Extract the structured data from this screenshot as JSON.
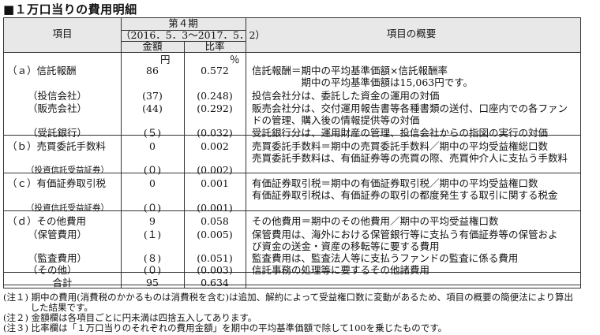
{
  "title": "■１万口当りの費用明細",
  "header": {
    "item": "項目",
    "period": "第４期",
    "date_range": "（2016．5．3～2017．5．2）",
    "amount": "金額",
    "ratio": "比率",
    "overview": "項目の概要"
  },
  "units": {
    "amount": "円",
    "ratio": "％"
  },
  "rows": [
    {
      "label": "（ａ）信託報酬",
      "amount": "86",
      "ratio": "0.572",
      "desc": [
        "信託報酬＝期中の平均基準価額×信託報酬率",
        "　　　　　期中の平均基準価額は15,063円です。"
      ]
    },
    {
      "label": "（投信会社）",
      "amount": "(37)",
      "ratio": "(0.248)",
      "desc": [
        "投信会社分は、委託した資金の運用の対価"
      ],
      "sub": true
    },
    {
      "label": "（販売会社）",
      "amount": "(44)",
      "ratio": "(0.292)",
      "desc": [
        "販売会社分は、交付運用報告書等各種書類の送付、口座内での各ファン",
        "ドの管理、購入後の情報提供等の対価"
      ],
      "sub": true
    },
    {
      "label": "（受託銀行）",
      "amount": "(５)",
      "ratio": "(0.032)",
      "desc": [
        "受託銀行分は、運用財産の管理、投信会社からの指図の実行の対価"
      ],
      "sub": true
    },
    {
      "label": "（ｂ）売買委託手数料",
      "amount": "0",
      "ratio": "0.002",
      "desc": [
        "売買委託手数料＝期中の売買委託手数料／期中の平均受益権総口数",
        "売買委託手数料は、有価証券等の売買の際、売買仲介人に支払う手数料"
      ]
    },
    {
      "label": "（投資信託受益証券）",
      "amount": "(０)",
      "ratio": "(0.002)",
      "desc": [],
      "sub": true,
      "small": true
    },
    {
      "label": "（ｃ）有価証券取引税",
      "amount": "0",
      "ratio": "0.001",
      "desc": [
        "有価証券取引税＝期中の有価証券取引税／期中の平均受益権口数",
        "有価証券取引税は、有価証券の取引の都度発生する取引に関する税金"
      ]
    },
    {
      "label": "（投資信託受益証券）",
      "amount": "(０)",
      "ratio": "(0.001)",
      "desc": [],
      "sub": true,
      "small": true
    },
    {
      "label": "（ｄ）その他費用",
      "amount": "9",
      "ratio": "0.058",
      "desc": [
        "その他費用＝期中のその他費用／期中の平均受益権口数"
      ]
    },
    {
      "label": "（保管費用）",
      "amount": "(１)",
      "ratio": "(0.005)",
      "desc": [
        "保管費用は、海外における保管銀行等に支払う有価証券等の保管およ",
        "び資金の送金・資産の移転等に要する費用"
      ],
      "sub": true
    },
    {
      "label": "（監査費用）",
      "amount": "(８)",
      "ratio": "(0.051)",
      "desc": [
        "監査費用は、監査法人等に支払うファンドの監査に係る費用"
      ],
      "sub": true
    },
    {
      "label": "（その他）",
      "amount": "(０)",
      "ratio": "(0.003)",
      "desc": [
        "信託事務の処理等に要するその他諸費用"
      ],
      "sub": true
    },
    {
      "label": "合計",
      "amount": "95",
      "ratio": "0.634",
      "desc": [],
      "total": true
    }
  ],
  "notes": [
    "(注１) 期中の費用(消費税のかかるものは消費税を含む)は追加、解約によって受益権口数に変動があるため、項目の概要の簡便法により算出",
    "　　　した結果です。",
    "(注２) 金額欄は各項目ごとに円未満は四捨五入してあります。",
    "(注３) 比率欄は「１万口当りのそれぞれの費用金額」を期中の平均基準価額で除して100を乗じたものです。"
  ]
}
